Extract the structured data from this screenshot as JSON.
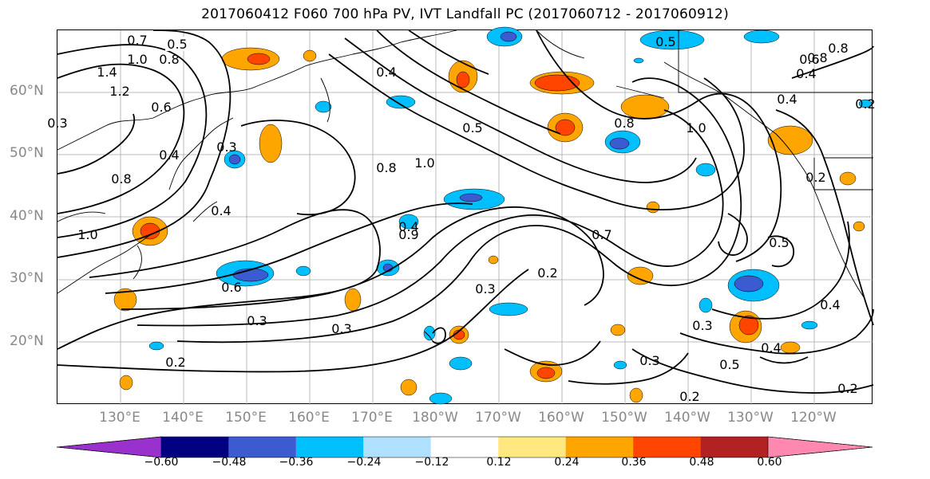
{
  "title": "2017060412 F060 700 hPa PV, IVT Landfall PC (2017060712 - 2017060912)",
  "lat_labels": [
    "60°N",
    "50°N",
    "40°N",
    "30°N",
    "20°N"
  ],
  "lon_labels": [
    "130°E",
    "140°E",
    "150°E",
    "160°E",
    "170°E",
    "180°W",
    "170°W",
    "160°W",
    "150°W",
    "140°W",
    "130°W",
    "120°W"
  ],
  "colorbar": {
    "colors": [
      "#9932cc",
      "#000080",
      "#3b5bd0",
      "#00bfff",
      "#b0e0ff",
      "#ffffff",
      "#ffe880",
      "#ffa500",
      "#ff4500",
      "#b22222",
      "#ff88b0"
    ],
    "tick_labels": [
      "−0.60",
      "−0.48",
      "−0.36",
      "−0.24",
      "−0.12",
      "0.12",
      "0.24",
      "0.36",
      "0.48",
      "0.60"
    ]
  },
  "contour_labels": [
    "0.5",
    "0.7",
    "0.8",
    "1.0",
    "1.4",
    "1.2",
    "0.6",
    "0.3",
    "0.4",
    "0.8",
    "0.4",
    "1.0",
    "0.3",
    "0.4",
    "0.8",
    "0.4",
    "0.5",
    "0.8",
    "1.0",
    "0.7",
    "0.2",
    "0.6",
    "0.3",
    "0.3",
    "0.2",
    "0.3",
    "0.2",
    "0.3",
    "0.3",
    "0.5",
    "0.2",
    "0.4",
    "0.2",
    "0.4",
    "0.5",
    "0.4",
    "0.2",
    "0.5",
    "0.6",
    "0.8",
    "0.4",
    "0.8",
    "0.9",
    "1.0"
  ]
}
